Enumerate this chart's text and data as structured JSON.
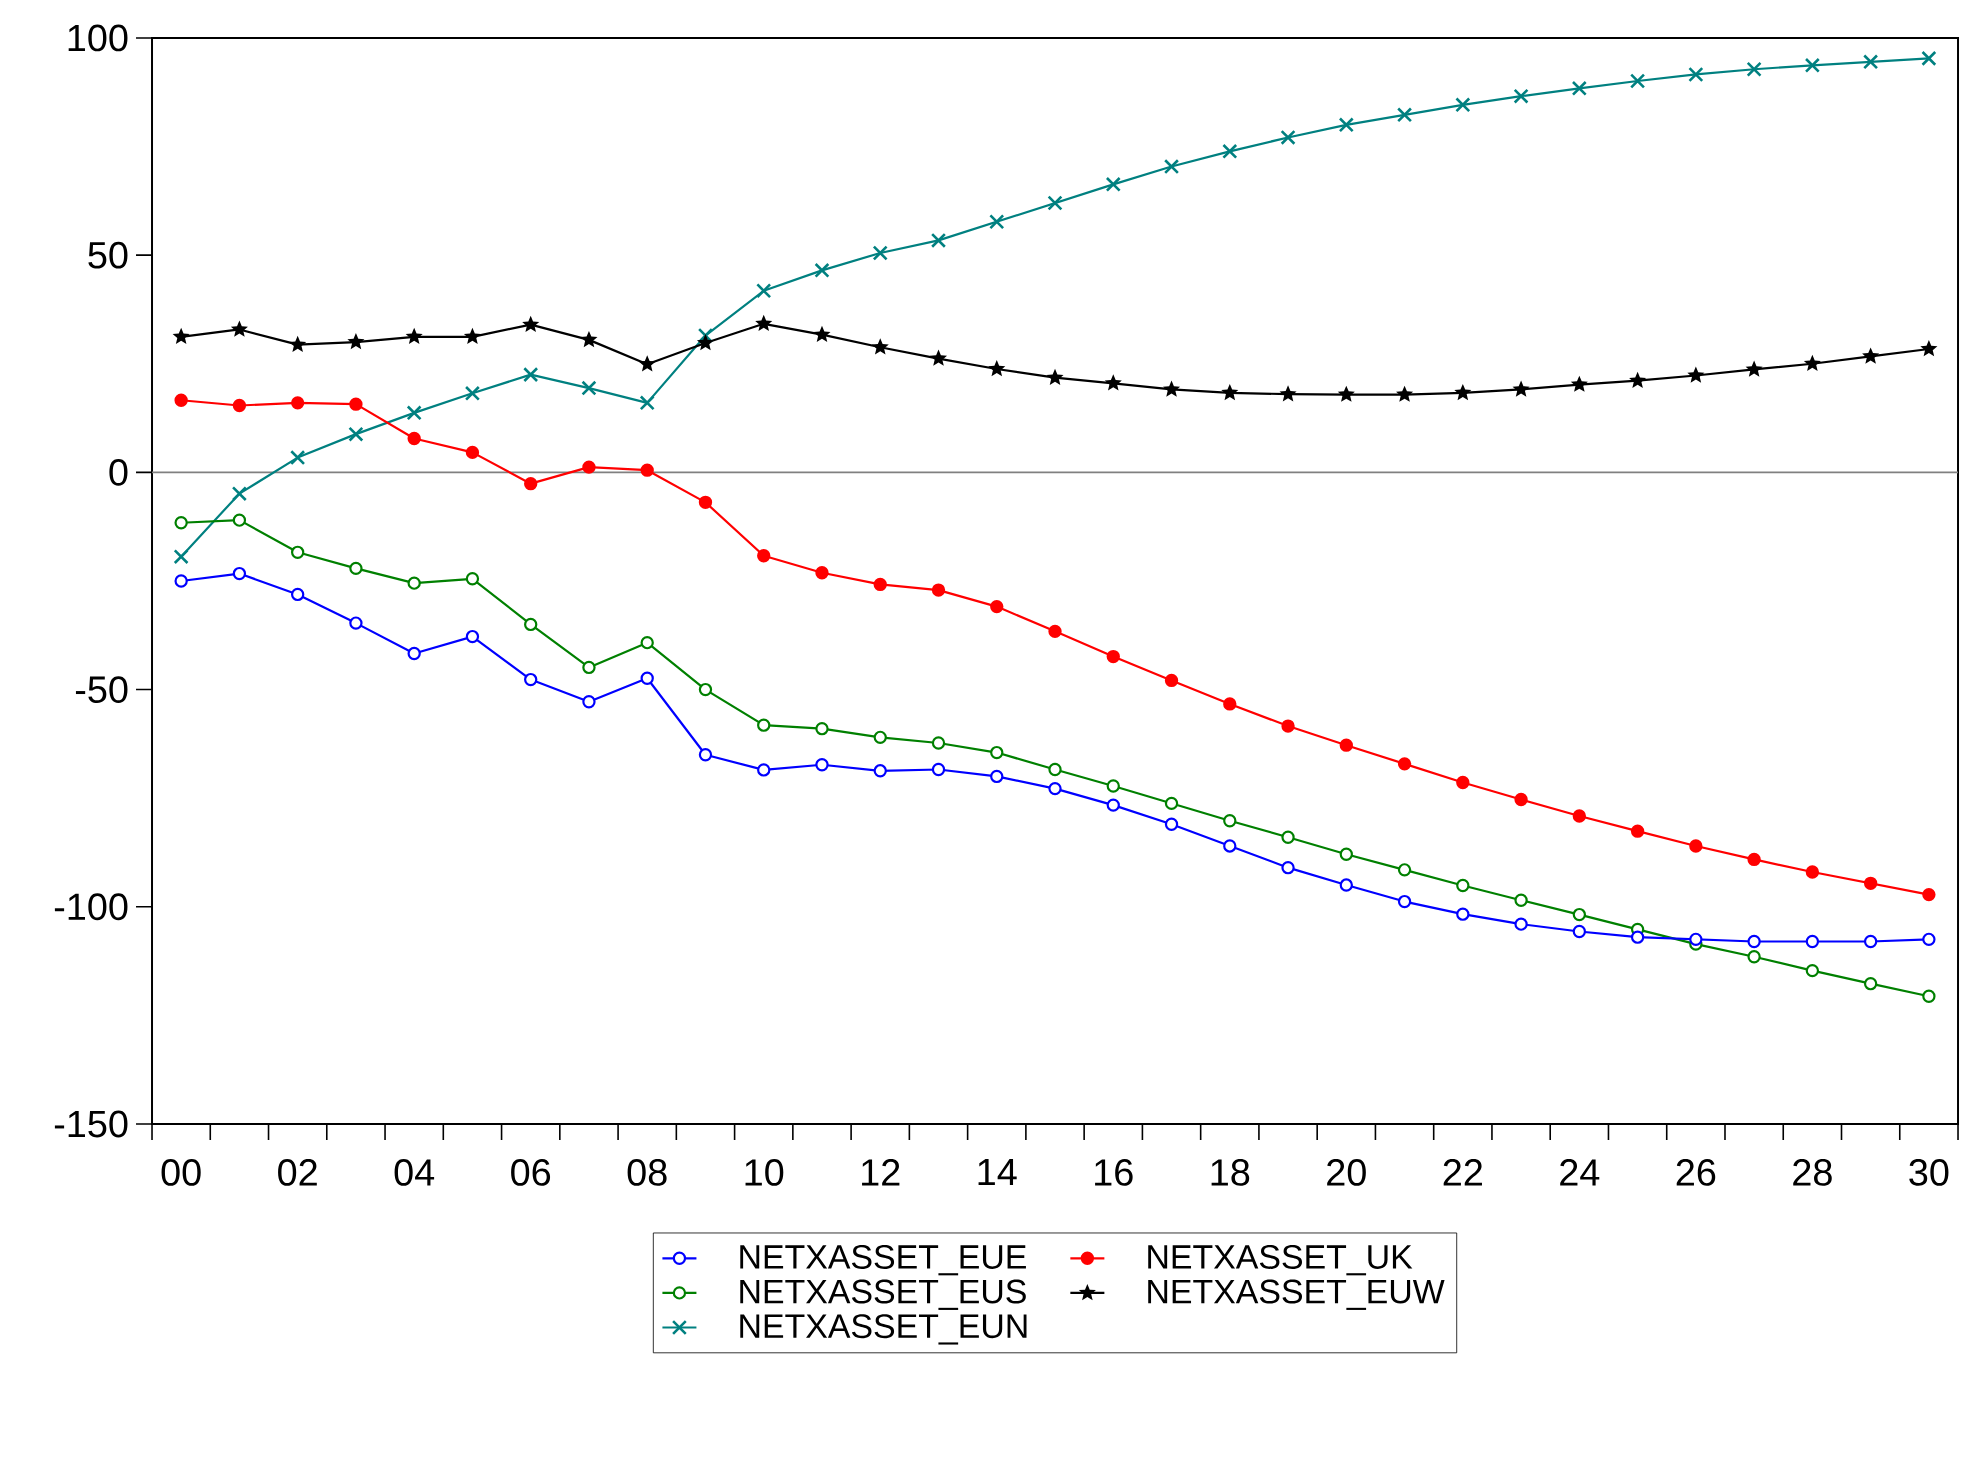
{
  "chart_data": {
    "type": "line",
    "categories": [
      "00",
      null,
      "02",
      null,
      "04",
      null,
      "06",
      null,
      "08",
      null,
      "10",
      null,
      "12",
      null,
      "14",
      null,
      "16",
      null,
      "18",
      null,
      "20",
      null,
      "22",
      null,
      "24",
      null,
      "26",
      null,
      "28",
      null,
      "30"
    ],
    "ylim": [
      -150,
      100
    ],
    "yticks": [
      -150,
      -100,
      -50,
      0,
      50,
      100
    ],
    "grid": false,
    "legend": "bottom",
    "line_style": "solid",
    "ref_lines": [
      {
        "axis": "y",
        "value": 0,
        "color": "#808080"
      }
    ],
    "series": [
      {
        "name": "NETXASSET_EUE",
        "color": "#0000ff",
        "marker": "circle",
        "values": [
          -25,
          -23.3,
          -28.1,
          -34.7,
          -41.7,
          -37.8,
          -47.7,
          -52.8,
          -47.4,
          -65,
          -68.5,
          -67.3,
          -68.7,
          -68.4,
          -70,
          -72.8,
          -76.6,
          -81,
          -86,
          -91,
          -95,
          -98.8,
          -101.7,
          -104,
          -105.7,
          -107,
          -107.5,
          -108,
          -108,
          -108,
          -107.5
        ]
      },
      {
        "name": "NETXASSET_UK",
        "color": "#ff0000",
        "marker": "circle",
        "values": [
          16.6,
          15.4,
          16,
          15.7,
          7.8,
          4.6,
          -2.6,
          1.2,
          0.5,
          -6.9,
          -19.2,
          -23.1,
          -25.8,
          -27.1,
          -30.9,
          -36.6,
          -42.4,
          -47.9,
          -53.3,
          -58.4,
          -62.8,
          -67.1,
          -71.4,
          -75.3,
          -79.1,
          -82.6,
          -86,
          -89.1,
          -92,
          -94.6,
          -97.2
        ]
      },
      {
        "name": "NETXASSET_EUS",
        "color": "#008000",
        "marker": "circle",
        "values": [
          -11.6,
          -11,
          -18.4,
          -22.1,
          -25.5,
          -24.5,
          -35,
          -44.9,
          -39.2,
          -50,
          -58.2,
          -59,
          -61,
          -62.3,
          -64.5,
          -68.4,
          -72.2,
          -76.2,
          -80.2,
          -84,
          -87.9,
          -91.5,
          -95.1,
          -98.5,
          -101.8,
          -105.2,
          -108.6,
          -111.5,
          -114.7,
          -117.7,
          -120.6
        ]
      },
      {
        "name": "NETXASSET_EUW",
        "color": "#000000",
        "marker": "star",
        "values": [
          31.2,
          32.9,
          29.4,
          30,
          31.2,
          31.2,
          34,
          30.5,
          24.9,
          29.8,
          34.2,
          31.7,
          28.8,
          26.2,
          23.8,
          21.8,
          20.5,
          19.1,
          18.3,
          18,
          17.9,
          17.9,
          18.3,
          19.1,
          20.2,
          21.1,
          22.3,
          23.7,
          25,
          26.7,
          28.4
        ]
      },
      {
        "name": "NETXASSET_EUN",
        "color": "#008080",
        "marker": "cross",
        "values": [
          -19.4,
          -4.9,
          3.4,
          8.8,
          13.7,
          18.2,
          22.5,
          19.4,
          16,
          31.5,
          41.8,
          46.5,
          50.5,
          53.4,
          57.7,
          62,
          66.3,
          70.4,
          73.9,
          77.1,
          80,
          82.3,
          84.6,
          86.6,
          88.4,
          90.1,
          91.6,
          92.8,
          93.7,
          94.5,
          95.3
        ]
      }
    ]
  }
}
